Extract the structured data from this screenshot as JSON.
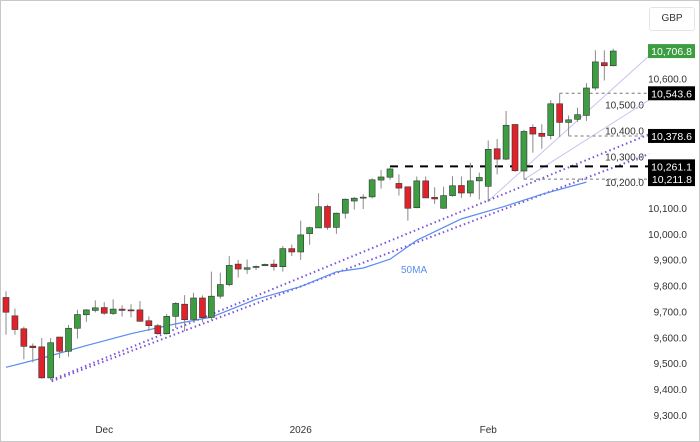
{
  "currency_button": "GBP",
  "chart_data": {
    "type": "candlestick",
    "y_ticks": [
      "9,300.0",
      "9,400.0",
      "9,500.0",
      "9,600.0",
      "9,700.0",
      "9,800.0",
      "9,900.0",
      "10,000.0",
      "10,100.0",
      "10,200.0",
      "10,300.0",
      "10,400.0",
      "10,500.0",
      "10,600.0"
    ],
    "y_tick_values": [
      9300,
      9400,
      9500,
      9600,
      9700,
      9800,
      9900,
      10000,
      10100,
      10200,
      10300,
      10400,
      10500,
      10600
    ],
    "ylim": [
      9250,
      10800
    ],
    "x_ticks": [
      {
        "label": "Dec",
        "date": "2025-12-01"
      },
      {
        "label": "2026",
        "date": "2026-01-02"
      },
      {
        "label": "Feb",
        "date": "2026-02-02"
      }
    ],
    "grid": false,
    "colors": {
      "up": "#3c9d41",
      "down": "#e0232b",
      "wick": "#8a8a8a",
      "ma": "#5b8def",
      "trend": "#7b52d9",
      "fan": "#c9c3ee",
      "last_price": "#3c9d41",
      "level_tag": "#000000"
    },
    "candles_columns": [
      "date",
      "open",
      "high",
      "low",
      "close"
    ],
    "candles": [
      [
        "2025-11-14",
        9754,
        9778,
        9610,
        9697
      ],
      [
        "2025-11-17",
        9683,
        9711,
        9610,
        9630
      ],
      [
        "2025-11-18",
        9633,
        9641,
        9515,
        9565
      ],
      [
        "2025-11-19",
        9566,
        9576,
        9503,
        9560
      ],
      [
        "2025-11-20",
        9563,
        9597,
        9440,
        9443
      ],
      [
        "2025-11-21",
        9443,
        9597,
        9435,
        9579
      ],
      [
        "2025-11-24",
        9601,
        9601,
        9519,
        9546
      ],
      [
        "2025-11-25",
        9546,
        9648,
        9525,
        9635
      ],
      [
        "2025-11-26",
        9635,
        9706,
        9595,
        9688
      ],
      [
        "2025-11-27",
        9687,
        9709,
        9660,
        9706
      ],
      [
        "2025-11-28",
        9704,
        9743,
        9696,
        9714
      ],
      [
        "2025-12-01",
        9715,
        9736,
        9687,
        9693
      ],
      [
        "2025-12-02",
        9692,
        9747,
        9686,
        9709
      ],
      [
        "2025-12-03",
        9709,
        9724,
        9680,
        9704
      ],
      [
        "2025-12-04",
        9706,
        9728,
        9677,
        9705
      ],
      [
        "2025-12-05",
        9706,
        9740,
        9660,
        9662
      ],
      [
        "2025-12-08",
        9664,
        9681,
        9624,
        9645
      ],
      [
        "2025-12-09",
        9645,
        9652,
        9610,
        9614
      ],
      [
        "2025-12-10",
        9614,
        9690,
        9610,
        9681
      ],
      [
        "2025-12-11",
        9681,
        9736,
        9636,
        9731
      ],
      [
        "2025-12-12",
        9728,
        9763,
        9624,
        9668
      ],
      [
        "2025-12-15",
        9669,
        9772,
        9660,
        9752
      ],
      [
        "2025-12-16",
        9752,
        9762,
        9658,
        9676
      ],
      [
        "2025-12-17",
        9677,
        9854,
        9667,
        9759
      ],
      [
        "2025-12-18",
        9759,
        9850,
        9749,
        9804
      ],
      [
        "2025-12-19",
        9804,
        9914,
        9797,
        9878
      ],
      [
        "2025-12-22",
        9883,
        9899,
        9831,
        9864
      ],
      [
        "2025-12-23",
        9863,
        9901,
        9845,
        9869
      ],
      [
        "2025-12-24",
        9870,
        9878,
        9860,
        9874
      ],
      [
        "2025-12-26",
        9877,
        9885,
        9875,
        9882
      ],
      [
        "2025-12-29",
        9883,
        9901,
        9858,
        9873
      ],
      [
        "2025-12-30",
        9873,
        9953,
        9854,
        9943
      ],
      [
        "2025-12-31",
        9943,
        9959,
        9914,
        9930
      ],
      [
        "2026-01-02",
        9930,
        10051,
        9899,
        9996
      ],
      [
        "2026-01-05",
        10001,
        10028,
        9958,
        10024
      ],
      [
        "2026-01-06",
        10023,
        10157,
        10023,
        10105
      ],
      [
        "2026-01-07",
        10106,
        10113,
        10016,
        10025
      ],
      [
        "2026-01-08",
        10025,
        10082,
        10000,
        10080
      ],
      [
        "2026-01-09",
        10080,
        10137,
        10059,
        10134
      ],
      [
        "2026-01-12",
        10127,
        10142,
        10094,
        10138
      ],
      [
        "2026-01-13",
        10140,
        10153,
        10096,
        10142
      ],
      [
        "2026-01-14",
        10143,
        10215,
        10137,
        10209
      ],
      [
        "2026-01-15",
        10208,
        10247,
        10175,
        10220
      ],
      [
        "2026-01-16",
        10219,
        10256,
        10209,
        10251
      ],
      [
        "2026-01-19",
        10195,
        10230,
        10148,
        10177
      ],
      [
        "2026-01-20",
        10182,
        10182,
        10051,
        10099
      ],
      [
        "2026-01-21",
        10101,
        10222,
        10099,
        10205
      ],
      [
        "2026-01-22",
        10205,
        10222,
        10139,
        10139
      ],
      [
        "2026-01-23",
        10141,
        10180,
        10116,
        10135
      ],
      [
        "2026-01-26",
        10099,
        10182,
        10097,
        10148
      ],
      [
        "2026-01-27",
        10148,
        10223,
        10144,
        10186
      ],
      [
        "2026-01-28",
        10187,
        10222,
        10139,
        10158
      ],
      [
        "2026-01-29",
        10158,
        10275,
        10143,
        10205
      ],
      [
        "2026-01-30",
        10205,
        10237,
        10133,
        10218
      ],
      [
        "2026-02-02",
        10184,
        10361,
        10123,
        10327
      ],
      [
        "2026-02-03",
        10329,
        10367,
        10230,
        10289
      ],
      [
        "2026-02-04",
        10289,
        10475,
        10285,
        10420
      ],
      [
        "2026-02-05",
        10423,
        10423,
        10240,
        10244
      ],
      [
        "2026-02-06",
        10243,
        10403,
        10212,
        10396
      ],
      [
        "2026-02-09",
        10412,
        10424,
        10314,
        10386
      ],
      [
        "2026-02-10",
        10389,
        10424,
        10329,
        10377
      ],
      [
        "2026-02-11",
        10380,
        10517,
        10365,
        10503
      ],
      [
        "2026-02-12",
        10503,
        10544,
        10374,
        10431
      ],
      [
        "2026-02-13",
        10431,
        10458,
        10379,
        10441
      ],
      [
        "2026-02-16",
        10443,
        10488,
        10433,
        10461
      ],
      [
        "2026-02-17",
        10458,
        10583,
        10437,
        10564
      ],
      [
        "2026-02-18",
        10564,
        10710,
        10555,
        10665
      ],
      [
        "2026-02-19",
        10662,
        10710,
        10593,
        10650
      ],
      [
        "2026-02-20",
        10650,
        10716,
        10648,
        10707
      ]
    ],
    "moving_average": {
      "name": "50MA",
      "points": [
        [
          "2025-11-14",
          9484
        ],
        [
          "2025-11-20",
          9519
        ],
        [
          "2025-11-27",
          9568
        ],
        [
          "2025-12-04",
          9614
        ],
        [
          "2025-12-11",
          9652
        ],
        [
          "2025-12-17",
          9678
        ],
        [
          "2025-12-24",
          9747
        ],
        [
          "2026-01-02",
          9796
        ],
        [
          "2026-01-08",
          9853
        ],
        [
          "2026-01-13",
          9868
        ],
        [
          "2026-01-16",
          9902
        ],
        [
          "2026-01-21",
          9975
        ],
        [
          "2026-01-28",
          10058
        ],
        [
          "2026-02-04",
          10108
        ],
        [
          "2026-02-10",
          10153
        ],
        [
          "2026-02-17",
          10200
        ]
      ]
    },
    "trendlines": [
      {
        "style": "dotted",
        "from": [
          "2025-11-21",
          9435
        ],
        "to_price_at_axis": 10385
      },
      {
        "style": "dotted",
        "from": [
          "2025-11-21",
          9430
        ],
        "to_price_at_axis": 10309
      }
    ],
    "fan_lines": [
      {
        "from": [
          "2026-02-02",
          10127
        ],
        "to_price_at_axis": 10688
      },
      {
        "from": [
          "2026-02-06",
          10210
        ],
        "to_price_at_axis": 10518
      }
    ],
    "levels": [
      {
        "label": "10,706.8",
        "value": 10706.8,
        "kind": "last"
      },
      {
        "label": "10,543.6",
        "value": 10543.6,
        "kind": "tag",
        "dashed_from": "2026-02-12"
      },
      {
        "label": "10,378.6",
        "value": 10378.6,
        "kind": "tag",
        "dashed_from": "2026-02-13"
      },
      {
        "label": "10,261.1",
        "value": 10261.1,
        "kind": "tag",
        "bold": true,
        "dashed_from": "2026-01-16"
      },
      {
        "label": "10,211.8",
        "value": 10211.8,
        "kind": "tag",
        "dashed_from": "2026-02-06"
      }
    ]
  }
}
